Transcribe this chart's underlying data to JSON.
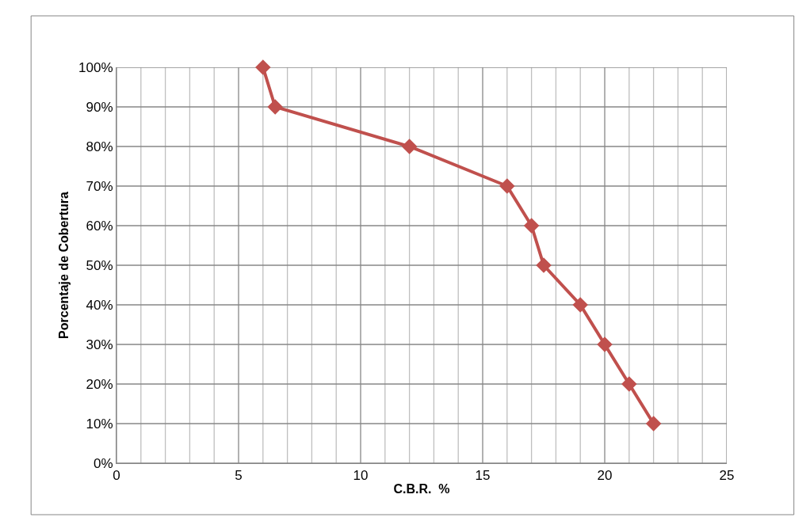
{
  "chart_data": {
    "type": "line",
    "xlabel": "C.B.R.  %",
    "ylabel": "Porcentaje de Cobertura",
    "x": [
      6,
      6.5,
      12,
      16,
      17,
      17.5,
      19,
      20,
      21,
      22
    ],
    "series": [
      {
        "color": "#c0504d",
        "values": [
          100,
          90,
          80,
          70,
          60,
          50,
          40,
          30,
          20,
          10
        ]
      }
    ],
    "xlim": [
      0,
      25
    ],
    "xticks": [
      0,
      {
        "value": 1,
        "label": null
      },
      {
        "value": 2,
        "label": null
      },
      {
        "value": 3,
        "label": null
      },
      {
        "value": 4,
        "label": null
      },
      5,
      {
        "value": 6,
        "label": null
      },
      {
        "value": 7,
        "label": null
      },
      {
        "value": 8,
        "label": null
      },
      {
        "value": 9,
        "label": null
      },
      10,
      {
        "value": 11,
        "label": null
      },
      {
        "value": 12,
        "label": null
      },
      {
        "value": 13,
        "label": null
      },
      {
        "value": 14,
        "label": null
      },
      15,
      {
        "value": 16,
        "label": null
      },
      {
        "value": 17,
        "label": null
      },
      {
        "value": 18,
        "label": null
      },
      {
        "value": 19,
        "label": null
      },
      20,
      {
        "value": 21,
        "label": null
      },
      {
        "value": 22,
        "label": null
      },
      {
        "value": 23,
        "label": null
      },
      {
        "value": 24,
        "label": null
      },
      25
    ],
    "ylim": [
      0,
      100
    ],
    "yticks": [
      {
        "value": 0,
        "label": "0%"
      },
      {
        "value": 10,
        "label": "10%"
      },
      {
        "value": 20,
        "label": "20%"
      },
      {
        "value": 30,
        "label": "30%"
      },
      {
        "value": 40,
        "label": "40%"
      },
      {
        "value": 50,
        "label": "50%"
      },
      {
        "value": 60,
        "label": "60%"
      },
      {
        "value": 70,
        "label": "70%"
      },
      {
        "value": 80,
        "label": "80%"
      },
      {
        "value": 90,
        "label": "90%"
      },
      {
        "value": 100,
        "label": "100%"
      }
    ],
    "grid": true,
    "legend": false,
    "marker": "diamond",
    "line_style": "solid"
  }
}
